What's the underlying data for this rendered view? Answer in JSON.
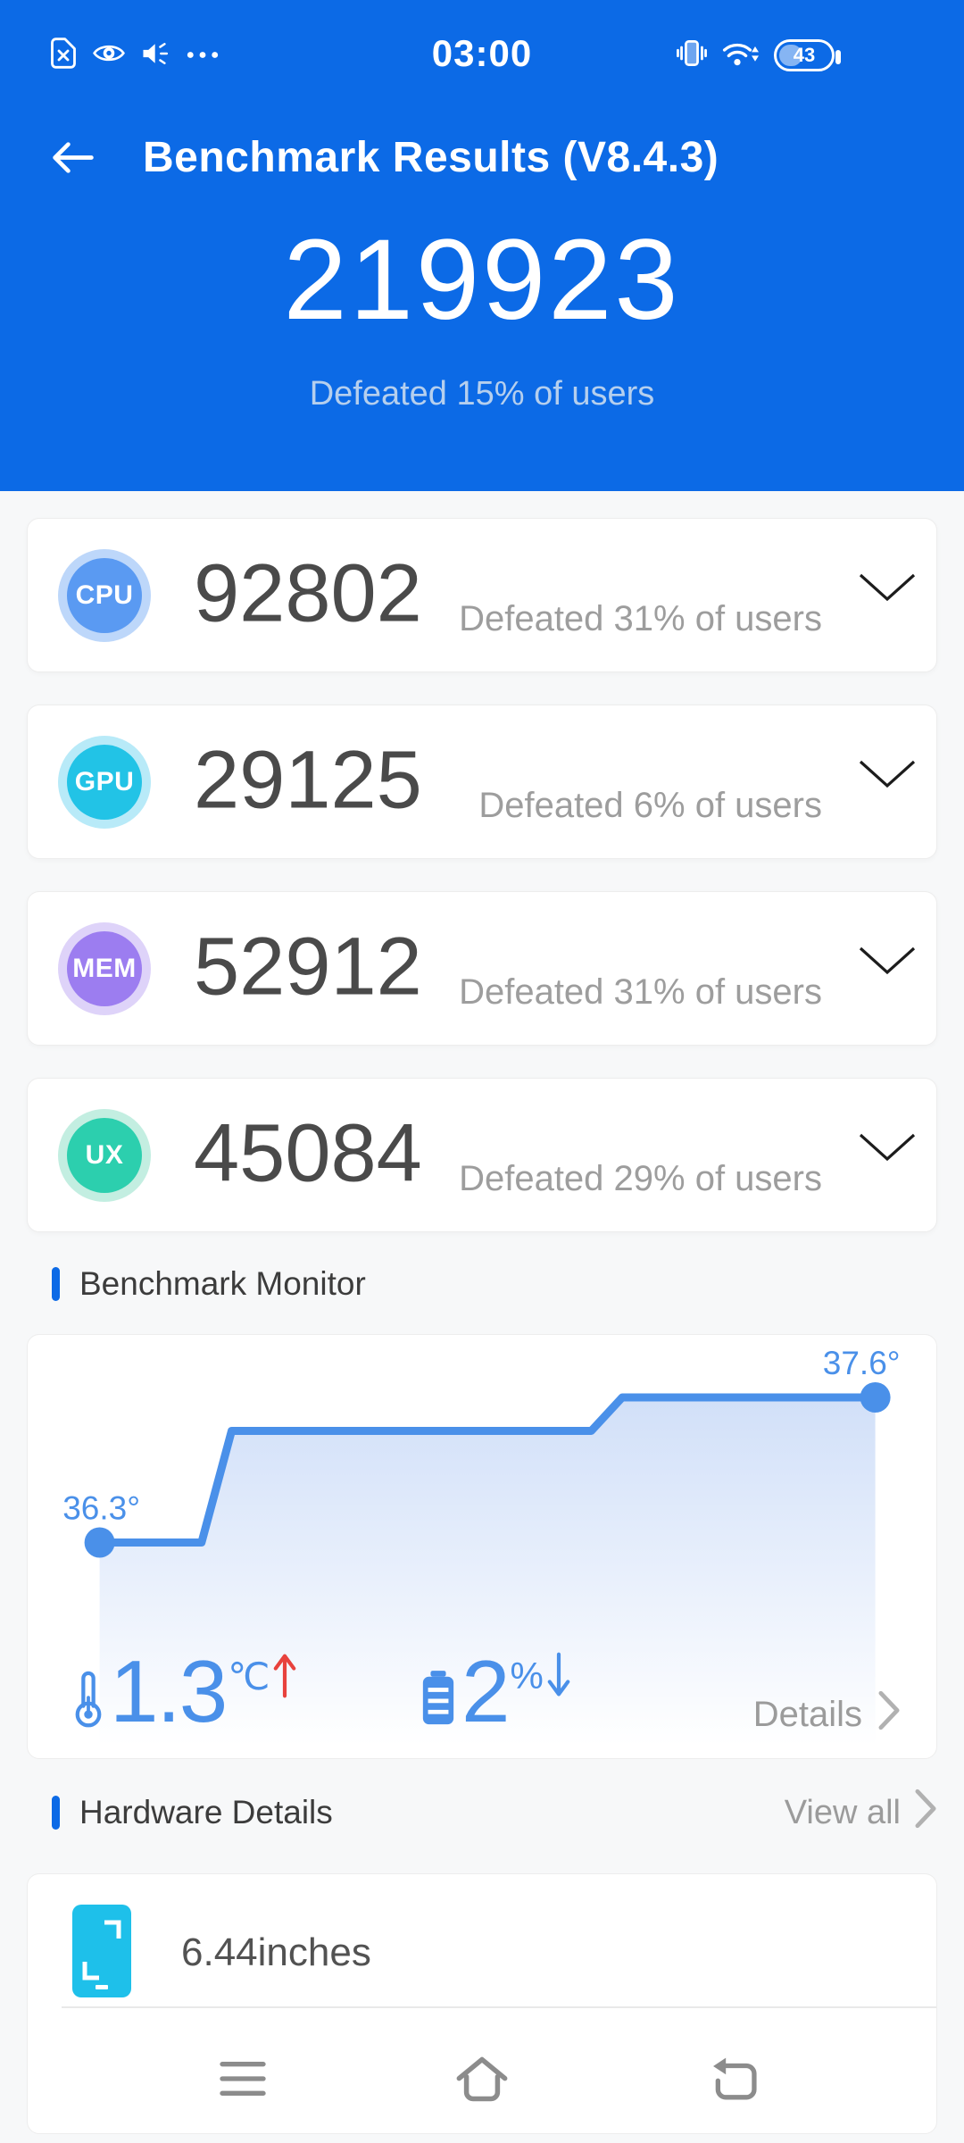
{
  "status_bar": {
    "time": "03:00",
    "battery_percent": "43",
    "left_icons": [
      "no-sim-icon",
      "eye-icon",
      "volume-icon",
      "ellipsis-icon"
    ],
    "right_icons": [
      "vibrate-icon",
      "wifi-icon",
      "battery-icon"
    ]
  },
  "header": {
    "title": "Benchmark Results (V8.4.3)",
    "total_score": "219923",
    "defeated": "Defeated 15% of users"
  },
  "score_cards": [
    {
      "badge": "CPU",
      "badge_color": "#5a9af2",
      "ring_color": "#bdd7fa",
      "score": "92802",
      "defeated": "Defeated 31% of users"
    },
    {
      "badge": "GPU",
      "badge_color": "#22c3e6",
      "ring_color": "#b8eaf8",
      "score": "29125",
      "defeated": "Defeated 6% of users"
    },
    {
      "badge": "MEM",
      "badge_color": "#9c7df0",
      "ring_color": "#ded3f9",
      "score": "52912",
      "defeated": "Defeated 31% of users"
    },
    {
      "badge": "UX",
      "badge_color": "#2ccfae",
      "ring_color": "#c3eee1",
      "score": "45084",
      "defeated": "Defeated 29% of users"
    }
  ],
  "monitor": {
    "section_title": "Benchmark Monitor",
    "start_label": "36.3°",
    "end_label": "37.6°",
    "temp_delta": "1.3",
    "temp_unit": "℃",
    "temp_trend": "up",
    "battery_delta": "2",
    "battery_unit": "%",
    "battery_trend": "down",
    "details_label": "Details",
    "chart_data": {
      "type": "line",
      "title": "Benchmark Monitor temperature curve",
      "unit": "°C",
      "start_value": 36.3,
      "end_value": 37.6,
      "y_ref_top": 37.6,
      "legend": "off",
      "grid": "off",
      "points": [
        {
          "x": 0.079,
          "t": 36.3
        },
        {
          "x": 0.191,
          "t": 36.3
        },
        {
          "x": 0.224,
          "t": 37.3
        },
        {
          "x": 0.619,
          "t": 37.3
        },
        {
          "x": 0.653,
          "t": 37.6
        },
        {
          "x": 0.931,
          "t": 37.6
        }
      ]
    }
  },
  "hardware": {
    "section_title": "Hardware Details",
    "view_all_label": "View all",
    "items": [
      {
        "icon": "screen-size-icon",
        "value": "6.44inches"
      }
    ]
  },
  "nav_bar": {
    "icons": [
      "menu-icon",
      "home-icon",
      "back-icon"
    ]
  },
  "colors": {
    "header_blue": "#0c6ae6",
    "accent_blue": "#4a90e9",
    "icon_cyan": "#1ec0ea",
    "trend_red": "#e8423d",
    "page_bg": "#f7f8f9",
    "card_bg": "#ffffff",
    "score_text": "#4a4a4a",
    "muted_text": "#9d9d9d"
  }
}
